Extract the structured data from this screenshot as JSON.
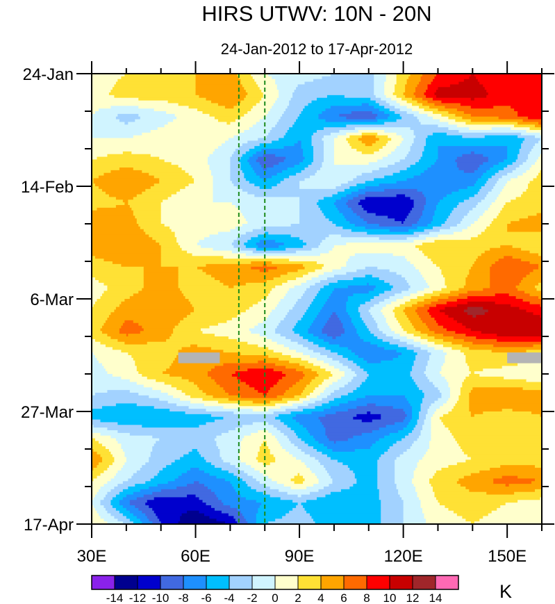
{
  "chart_data": {
    "type": "heatmap",
    "title": "HIRS UTWV: 10N - 20N",
    "subtitle": "24-Jan-2012 to 17-Apr-2012",
    "xlabel": "",
    "ylabel": "",
    "x_units": "degrees longitude East",
    "y_units": "days since 24-Jan-2012",
    "xlim": [
      30,
      160
    ],
    "ylim": [
      0,
      84
    ],
    "x_ticks": [
      {
        "value": 30,
        "label": "30E"
      },
      {
        "value": 60,
        "label": "60E"
      },
      {
        "value": 90,
        "label": "90E"
      },
      {
        "value": 120,
        "label": "120E"
      },
      {
        "value": 150,
        "label": "150E"
      }
    ],
    "y_ticks": [
      {
        "value": 0,
        "label": "24-Jan"
      },
      {
        "value": 21,
        "label": "14-Feb"
      },
      {
        "value": 42,
        "label": "6-Mar"
      },
      {
        "value": 63,
        "label": "27-Mar"
      },
      {
        "value": 84,
        "label": "17-Apr"
      }
    ],
    "lon": [
      30,
      40,
      50,
      60,
      70,
      80,
      90,
      100,
      110,
      120,
      130,
      140,
      150,
      160
    ],
    "day": [
      0,
      4,
      8,
      12,
      16,
      20,
      24,
      28,
      32,
      36,
      40,
      44,
      48,
      52,
      56,
      60,
      64,
      68,
      72,
      76,
      80,
      84
    ],
    "values": [
      [
        1,
        2,
        3,
        4,
        5,
        0,
        -1,
        -2,
        -3,
        3,
        8,
        10,
        8,
        9
      ],
      [
        1,
        3,
        3,
        4,
        6,
        2,
        -3,
        -4,
        -3,
        4,
        11,
        11,
        9,
        8
      ],
      [
        0,
        -3,
        -1,
        1,
        3,
        0,
        -4,
        -8,
        -10,
        -4,
        1,
        6,
        7,
        10
      ],
      [
        0,
        0,
        1,
        2,
        0,
        -2,
        -6,
        0,
        6,
        0,
        -6,
        -4,
        -6,
        -2
      ],
      [
        2,
        3,
        2,
        1,
        -2,
        -10,
        -7,
        0,
        1,
        -2,
        -6,
        -10,
        -6,
        1
      ],
      [
        4,
        6,
        4,
        2,
        -2,
        -6,
        -2,
        0,
        -4,
        -6,
        -8,
        -7,
        0,
        3
      ],
      [
        3,
        4,
        2,
        0,
        0,
        -1,
        -2,
        -6,
        -12,
        -12,
        -6,
        -3,
        2,
        3
      ],
      [
        6,
        5,
        2,
        1,
        1,
        -1,
        -2,
        -4,
        -8,
        -10,
        -5,
        0,
        4,
        5
      ],
      [
        5,
        6,
        4,
        0,
        -2,
        -8,
        -5,
        0,
        1,
        1,
        4,
        3,
        4,
        2
      ],
      [
        3,
        4,
        4,
        4,
        5,
        7,
        5,
        1,
        -2,
        -1,
        2,
        4,
        8,
        6
      ],
      [
        1,
        3,
        5,
        3,
        4,
        3,
        -1,
        -6,
        -7,
        -3,
        1,
        5,
        7,
        3
      ],
      [
        2,
        5,
        6,
        4,
        3,
        1,
        -3,
        -8,
        -2,
        4,
        10,
        13,
        11,
        9
      ],
      [
        3,
        7,
        5,
        2,
        1,
        -1,
        -5,
        -10,
        -4,
        2,
        7,
        10,
        12,
        12
      ],
      [
        0,
        2,
        3,
        5,
        4,
        3,
        0,
        -4,
        -8,
        -6,
        -1,
        3,
        4,
        3
      ],
      [
        -1,
        1,
        4,
        5,
        8,
        10,
        7,
        2,
        -4,
        -5,
        0,
        2,
        1,
        0
      ],
      [
        -2,
        -3,
        -1,
        3,
        6,
        8,
        4,
        -3,
        -6,
        -6,
        -3,
        5,
        6,
        5
      ],
      [
        -5,
        -6,
        -6,
        -5,
        -4,
        -3,
        -7,
        -9,
        -11,
        -9,
        2,
        4,
        3,
        4
      ],
      [
        2,
        -1,
        -2,
        -3,
        -1,
        2,
        -4,
        -9,
        -7,
        -4,
        1,
        3,
        2,
        3
      ],
      [
        6,
        0,
        -3,
        -5,
        -1,
        3,
        0,
        -4,
        -5,
        -1,
        1,
        2,
        3,
        3
      ],
      [
        2,
        -2,
        -5,
        -8,
        -6,
        -1,
        3,
        -2,
        -5,
        -1,
        3,
        5,
        7,
        6
      ],
      [
        0,
        -8,
        -12,
        -11,
        -7,
        -6,
        -4,
        -6,
        -5,
        -2,
        2,
        3,
        2,
        1
      ],
      [
        2,
        -2,
        -10,
        -14,
        -12,
        -4,
        -3,
        -5,
        -5,
        -2,
        1,
        2,
        1,
        1
      ]
    ],
    "missing_regions": [
      {
        "lon": [
          55,
          67
        ],
        "day": [
          52,
          54
        ]
      },
      {
        "lon": [
          150,
          160
        ],
        "day": [
          52,
          54
        ]
      }
    ],
    "reference_lines_lon": [
      72.5,
      80
    ],
    "reference_line_color": "#1a8a1a",
    "missing_color": "#b4b4b4",
    "colorbar": {
      "levels": [
        -14,
        -12,
        -10,
        -8,
        -6,
        -4,
        -2,
        0,
        2,
        4,
        6,
        8,
        10,
        12,
        14
      ],
      "labels": [
        "-14",
        "-12",
        "-10",
        "-8",
        "-6",
        "-4",
        "-2",
        "0",
        "2",
        "4",
        "6",
        "8",
        "10",
        "12",
        "14"
      ],
      "colors": [
        "#8a22ea",
        "#00008f",
        "#0000cd",
        "#4169e1",
        "#1e90ff",
        "#00bfff",
        "#a2d2ff",
        "#d0f4ff",
        "#ffffcc",
        "#ffe135",
        "#ffa500",
        "#ff6a00",
        "#ff0000",
        "#c80000",
        "#a0262a",
        "#ff69b4"
      ],
      "units": "K",
      "legend_position": "bottom"
    }
  }
}
